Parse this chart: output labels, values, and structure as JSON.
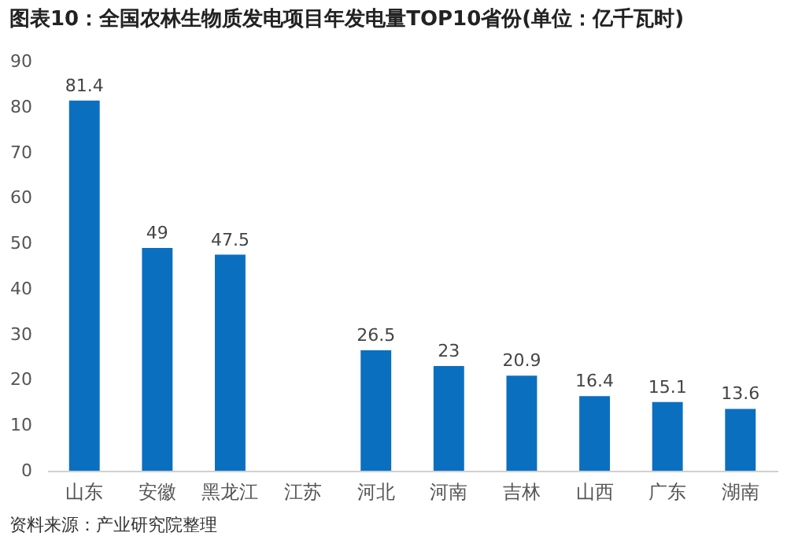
{
  "chart_data": {
    "type": "bar",
    "title": "图表10：全国农林生物质发电项目年发电量TOP10省份(单位：亿千瓦时)",
    "categories": [
      "山东",
      "安徽",
      "黑龙江",
      "江苏",
      "河北",
      "河南",
      "吉林",
      "山西",
      "广东",
      "湖南"
    ],
    "values": [
      81.4,
      49,
      47.5,
      null,
      26.5,
      23,
      20.9,
      16.4,
      15.1,
      13.6
    ],
    "value_labels": [
      "81.4",
      "49",
      "47.5",
      null,
      "26.5",
      "23",
      "20.9",
      "16.4",
      "15.1",
      "13.6"
    ],
    "color": "#0b6fc0",
    "ylim": [
      0,
      90
    ],
    "yticks": [
      0,
      10,
      20,
      30,
      40,
      50,
      60,
      70,
      80,
      90
    ],
    "grid": false,
    "annotations": [
      "资料来源：产业研究院整理"
    ]
  }
}
